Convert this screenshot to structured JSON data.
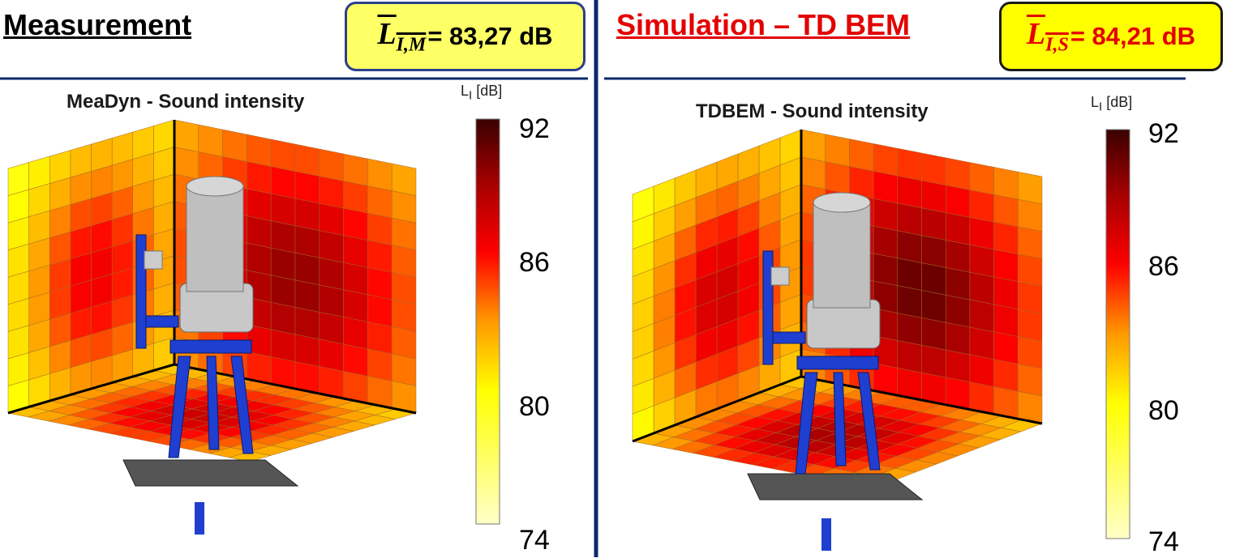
{
  "panels": [
    {
      "heading": "Measurement",
      "average": {
        "symbol": "L",
        "subscript": "I,M",
        "value": "= 83,27 dB"
      },
      "plot_title": "MeaDyn - Sound intensity",
      "colorbar": {
        "label": "L",
        "label_sub": "I",
        "label_unit": " [dB]",
        "ticks": [
          "92",
          "86",
          "80",
          "74"
        ],
        "min": 74,
        "max": 92
      }
    },
    {
      "heading": "Simulation – TD BEM",
      "average": {
        "symbol": "L",
        "subscript": "I,S",
        "value": "= 84,21 dB"
      },
      "plot_title": "TDBEM - Sound intensity",
      "colorbar": {
        "label": "L",
        "label_sub": "I",
        "label_unit": " [dB]",
        "ticks": [
          "92",
          "86",
          "80",
          "74"
        ],
        "min": 74,
        "max": 92
      }
    }
  ],
  "colors": {
    "divider": "#0b2b6b",
    "stand": "#1f3fd0",
    "mount_plate": "#555555"
  }
}
